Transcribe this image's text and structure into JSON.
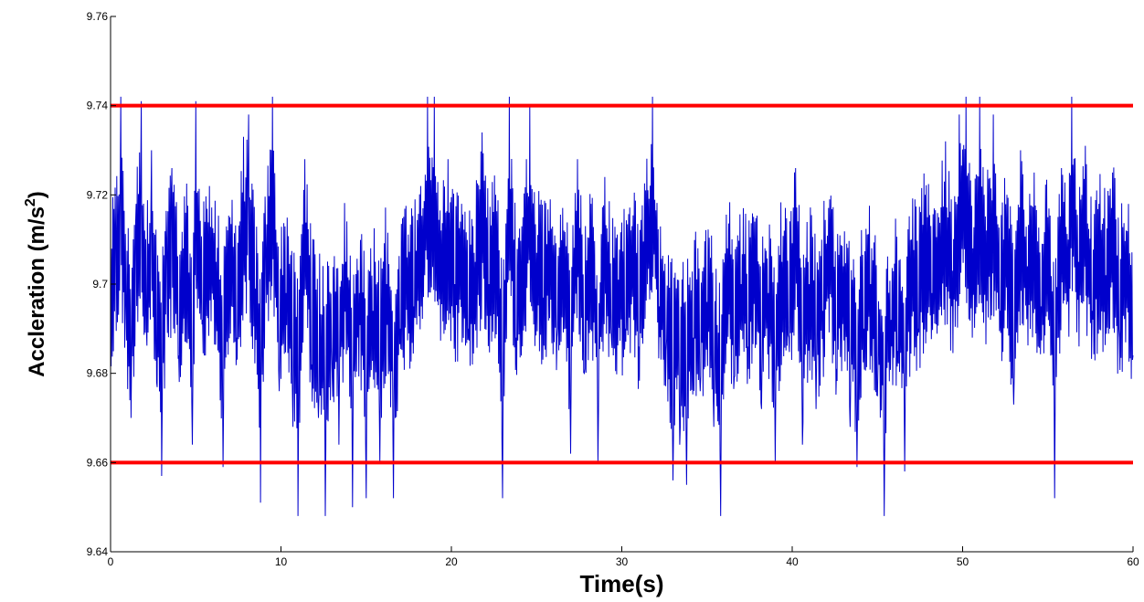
{
  "chart_data": {
    "type": "line",
    "title": "",
    "xlabel": "Time(s)",
    "ylabel": "Accleration (m/s",
    "ylabel_superscript": "2",
    "ylabel_suffix": ")",
    "xlim": [
      0,
      60
    ],
    "ylim": [
      9.64,
      9.76
    ],
    "x_ticks": [
      0,
      10,
      20,
      30,
      40,
      50,
      60
    ],
    "x_tick_labels": [
      "0",
      "10",
      "20",
      "30",
      "40",
      "50",
      "60"
    ],
    "y_ticks": [
      9.64,
      9.66,
      9.68,
      9.7,
      9.72,
      9.74,
      9.76
    ],
    "y_tick_labels": [
      "9.64",
      "9.66",
      "9.68",
      "9.7",
      "9.72",
      "9.74",
      "9.76"
    ],
    "grid": false,
    "series": [
      {
        "color": "#0000cc",
        "sample_rate_hz": 30,
        "points": [
          [
            0.0,
            9.688
          ],
          [
            0.3,
            9.712
          ],
          [
            0.6,
            9.743
          ],
          [
            0.9,
            9.695
          ],
          [
            1.2,
            9.67
          ],
          [
            1.5,
            9.718
          ],
          [
            1.8,
            9.741
          ],
          [
            2.1,
            9.69
          ],
          [
            2.4,
            9.73
          ],
          [
            2.7,
            9.678
          ],
          [
            3.0,
            9.657
          ],
          [
            3.3,
            9.71
          ],
          [
            3.6,
            9.726
          ],
          [
            4.0,
            9.684
          ],
          [
            4.4,
            9.716
          ],
          [
            4.8,
            9.664
          ],
          [
            5.0,
            9.741
          ],
          [
            5.4,
            9.692
          ],
          [
            5.8,
            9.722
          ],
          [
            6.2,
            9.705
          ],
          [
            6.6,
            9.659
          ],
          [
            7.0,
            9.715
          ],
          [
            7.4,
            9.688
          ],
          [
            7.8,
            9.733
          ],
          [
            8.1,
            9.738
          ],
          [
            8.5,
            9.699
          ],
          [
            8.8,
            9.651
          ],
          [
            9.1,
            9.71
          ],
          [
            9.5,
            9.747
          ],
          [
            9.9,
            9.676
          ],
          [
            10.3,
            9.698
          ],
          [
            10.7,
            9.668
          ],
          [
            11.0,
            9.647
          ],
          [
            11.4,
            9.728
          ],
          [
            11.8,
            9.682
          ],
          [
            12.2,
            9.67
          ],
          [
            12.6,
            9.647
          ],
          [
            13.0,
            9.68
          ],
          [
            13.4,
            9.664
          ],
          [
            13.8,
            9.705
          ],
          [
            14.2,
            9.65
          ],
          [
            14.6,
            9.698
          ],
          [
            15.0,
            9.652
          ],
          [
            15.4,
            9.694
          ],
          [
            15.8,
            9.66
          ],
          [
            16.2,
            9.7
          ],
          [
            16.6,
            9.652
          ],
          [
            17.0,
            9.69
          ],
          [
            17.4,
            9.706
          ],
          [
            17.8,
            9.695
          ],
          [
            18.2,
            9.722
          ],
          [
            18.6,
            9.748
          ],
          [
            19.0,
            9.745
          ],
          [
            19.4,
            9.712
          ],
          [
            19.8,
            9.728
          ],
          [
            20.2,
            9.7
          ],
          [
            20.6,
            9.718
          ],
          [
            21.0,
            9.69
          ],
          [
            21.4,
            9.705
          ],
          [
            21.8,
            9.734
          ],
          [
            22.2,
            9.7
          ],
          [
            22.6,
            9.72
          ],
          [
            23.0,
            9.652
          ],
          [
            23.4,
            9.745
          ],
          [
            23.8,
            9.688
          ],
          [
            24.2,
            9.715
          ],
          [
            24.6,
            9.74
          ],
          [
            25.0,
            9.707
          ],
          [
            25.4,
            9.697
          ],
          [
            25.8,
            9.719
          ],
          [
            26.2,
            9.688
          ],
          [
            26.6,
            9.712
          ],
          [
            27.0,
            9.662
          ],
          [
            27.4,
            9.728
          ],
          [
            27.8,
            9.68
          ],
          [
            28.2,
            9.718
          ],
          [
            28.6,
            9.66
          ],
          [
            29.0,
            9.724
          ],
          [
            29.4,
            9.687
          ],
          [
            29.8,
            9.701
          ],
          [
            30.2,
            9.69
          ],
          [
            30.6,
            9.713
          ],
          [
            31.0,
            9.686
          ],
          [
            31.4,
            9.721
          ],
          [
            31.8,
            9.751
          ],
          [
            32.2,
            9.695
          ],
          [
            32.6,
            9.685
          ],
          [
            33.0,
            9.656
          ],
          [
            33.4,
            9.664
          ],
          [
            33.8,
            9.655
          ],
          [
            34.2,
            9.688
          ],
          [
            34.6,
            9.676
          ],
          [
            35.0,
            9.696
          ],
          [
            35.4,
            9.668
          ],
          [
            35.8,
            9.643
          ],
          [
            36.2,
            9.708
          ],
          [
            36.6,
            9.679
          ],
          [
            37.0,
            9.7
          ],
          [
            37.4,
            9.686
          ],
          [
            37.8,
            9.714
          ],
          [
            38.2,
            9.672
          ],
          [
            38.6,
            9.698
          ],
          [
            39.0,
            9.66
          ],
          [
            39.4,
            9.705
          ],
          [
            39.8,
            9.688
          ],
          [
            40.2,
            9.726
          ],
          [
            40.6,
            9.664
          ],
          [
            41.0,
            9.7
          ],
          [
            41.4,
            9.672
          ],
          [
            41.8,
            9.694
          ],
          [
            42.2,
            9.719
          ],
          [
            42.6,
            9.681
          ],
          [
            43.0,
            9.704
          ],
          [
            43.4,
            9.668
          ],
          [
            43.8,
            9.659
          ],
          [
            44.2,
            9.69
          ],
          [
            44.6,
            9.7
          ],
          [
            45.0,
            9.675
          ],
          [
            45.4,
            9.646
          ],
          [
            45.8,
            9.692
          ],
          [
            46.2,
            9.685
          ],
          [
            46.6,
            9.658
          ],
          [
            47.0,
            9.71
          ],
          [
            47.4,
            9.69
          ],
          [
            47.8,
            9.72
          ],
          [
            48.2,
            9.698
          ],
          [
            48.6,
            9.715
          ],
          [
            49.0,
            9.732
          ],
          [
            49.4,
            9.703
          ],
          [
            49.8,
            9.738
          ],
          [
            50.2,
            9.742
          ],
          [
            50.6,
            9.708
          ],
          [
            51.0,
            9.744
          ],
          [
            51.4,
            9.712
          ],
          [
            51.8,
            9.738
          ],
          [
            52.2,
            9.694
          ],
          [
            52.6,
            9.72
          ],
          [
            53.0,
            9.673
          ],
          [
            53.4,
            9.73
          ],
          [
            53.8,
            9.704
          ],
          [
            54.2,
            9.725
          ],
          [
            54.6,
            9.695
          ],
          [
            55.0,
            9.715
          ],
          [
            55.4,
            9.652
          ],
          [
            55.8,
            9.726
          ],
          [
            56.2,
            9.71
          ],
          [
            56.4,
            9.752
          ],
          [
            56.8,
            9.705
          ],
          [
            57.2,
            9.731
          ],
          [
            57.6,
            9.694
          ],
          [
            58.0,
            9.718
          ],
          [
            58.4,
            9.702
          ],
          [
            58.8,
            9.725
          ],
          [
            59.2,
            9.688
          ],
          [
            59.6,
            9.712
          ],
          [
            60.0,
            9.684
          ]
        ]
      }
    ],
    "reference_lines": [
      {
        "y": 9.74,
        "color": "#ff0000"
      },
      {
        "y": 9.66,
        "color": "#ff0000"
      }
    ]
  }
}
